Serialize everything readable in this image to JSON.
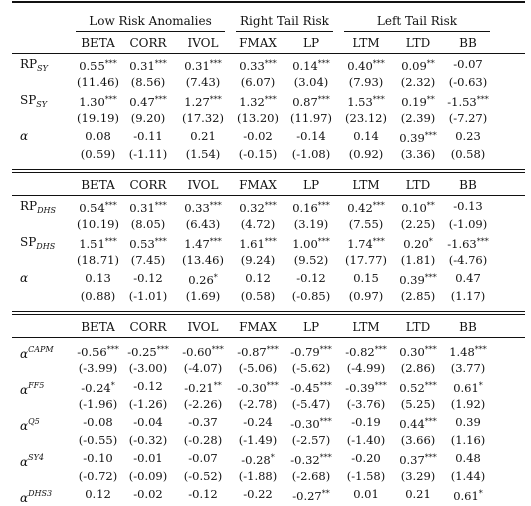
{
  "groups": [
    {
      "title": "Low Risk Anomalies",
      "cols": [
        0,
        1,
        2
      ]
    },
    {
      "title": "Right Tail Risk",
      "cols": [
        3,
        4
      ]
    },
    {
      "title": "Left Tail Risk",
      "cols": [
        5,
        6,
        7
      ]
    }
  ],
  "columns": [
    "BETA",
    "CORR",
    "IVOL",
    "FMAX",
    "LP",
    "LTM",
    "LTD",
    "BB"
  ],
  "panels": [
    {
      "rows": [
        {
          "label_main": "RP",
          "label_sub": "SY",
          "label_sup": "",
          "label_greek": false,
          "values": [
            "0.55***",
            "0.31***",
            "0.31***",
            "0.33***",
            "0.14***",
            "0.40***",
            "0.09**",
            "-0.07"
          ]
        },
        {
          "label_main": "",
          "label_sub": "",
          "label_sup": "",
          "label_greek": false,
          "values": [
            "(11.46)",
            "(8.56)",
            "(7.43)",
            "(6.07)",
            "(3.04)",
            "(7.93)",
            "(2.32)",
            "(-0.63)"
          ]
        },
        {
          "label_main": "SP",
          "label_sub": "SY",
          "label_sup": "",
          "label_greek": false,
          "values": [
            "1.30***",
            "0.47***",
            "1.27***",
            "1.32***",
            "0.87***",
            "1.53***",
            "0.19**",
            "-1.53***"
          ]
        },
        {
          "label_main": "",
          "label_sub": "",
          "label_sup": "",
          "label_greek": false,
          "values": [
            "(19.19)",
            "(9.20)",
            "(17.32)",
            "(13.20)",
            "(11.97)",
            "(23.12)",
            "(2.39)",
            "(-7.27)"
          ]
        },
        {
          "label_main": "α",
          "label_sub": "",
          "label_sup": "",
          "label_greek": true,
          "values": [
            "0.08",
            "-0.11",
            "0.21",
            "-0.02",
            "-0.14",
            "0.14",
            "0.39***",
            "0.23"
          ]
        },
        {
          "label_main": "",
          "label_sub": "",
          "label_sup": "",
          "label_greek": false,
          "values": [
            "(0.59)",
            "(-1.11)",
            "(1.54)",
            "(-0.15)",
            "(-1.08)",
            "(0.92)",
            "(3.36)",
            "(0.58)"
          ]
        }
      ]
    },
    {
      "rows": [
        {
          "label_main": "RP",
          "label_sub": "DHS",
          "label_sup": "",
          "label_greek": false,
          "values": [
            "0.54***",
            "0.31***",
            "0.33***",
            "0.32***",
            "0.16***",
            "0.42***",
            "0.10**",
            "-0.13"
          ]
        },
        {
          "label_main": "",
          "label_sub": "",
          "label_sup": "",
          "label_greek": false,
          "values": [
            "(10.19)",
            "(8.05)",
            "(6.43)",
            "(4.72)",
            "(3.19)",
            "(7.55)",
            "(2.25)",
            "(-1.09)"
          ]
        },
        {
          "label_main": "SP",
          "label_sub": "DHS",
          "label_sup": "",
          "label_greek": false,
          "values": [
            "1.51***",
            "0.53***",
            "1.47***",
            "1.61***",
            "1.00***",
            "1.74***",
            "0.20*",
            "-1.63***"
          ]
        },
        {
          "label_main": "",
          "label_sub": "",
          "label_sup": "",
          "label_greek": false,
          "values": [
            "(18.71)",
            "(7.45)",
            "(13.46)",
            "(9.24)",
            "(9.52)",
            "(17.77)",
            "(1.81)",
            "(-4.76)"
          ]
        },
        {
          "label_main": "α",
          "label_sub": "",
          "label_sup": "",
          "label_greek": true,
          "values": [
            "0.13",
            "-0.12",
            "0.26*",
            "0.12",
            "-0.12",
            "0.15",
            "0.39***",
            "0.47"
          ]
        },
        {
          "label_main": "",
          "label_sub": "",
          "label_sup": "",
          "label_greek": false,
          "values": [
            "(0.88)",
            "(-1.01)",
            "(1.69)",
            "(0.58)",
            "(-0.85)",
            "(0.97)",
            "(2.85)",
            "(1.17)"
          ]
        }
      ]
    },
    {
      "rows": [
        {
          "label_main": "α",
          "label_sub": "",
          "label_sup": "CAPM",
          "label_greek": true,
          "values": [
            "-0.56***",
            "-0.25***",
            "-0.60***",
            "-0.87***",
            "-0.79***",
            "-0.82***",
            "0.30***",
            "1.48***"
          ]
        },
        {
          "label_main": "",
          "label_sub": "",
          "label_sup": "",
          "label_greek": false,
          "values": [
            "(-3.99)",
            "(-3.00)",
            "(-4.07)",
            "(-5.06)",
            "(-5.62)",
            "(-4.99)",
            "(2.86)",
            "(3.77)"
          ]
        },
        {
          "label_main": "α",
          "label_sub": "",
          "label_sup": "FF5",
          "label_greek": true,
          "values": [
            "-0.24*",
            "-0.12",
            "-0.21**",
            "-0.30***",
            "-0.45***",
            "-0.39***",
            "0.52***",
            "0.61*"
          ]
        },
        {
          "label_main": "",
          "label_sub": "",
          "label_sup": "",
          "label_greek": false,
          "values": [
            "(-1.96)",
            "(-1.26)",
            "(-2.26)",
            "(-2.78)",
            "(-5.47)",
            "(-3.76)",
            "(5.25)",
            "(1.92)"
          ]
        },
        {
          "label_main": "α",
          "label_sub": "",
          "label_sup": "Q5",
          "label_greek": true,
          "values": [
            "-0.08",
            "-0.04",
            "-0.37",
            "-0.24",
            "-0.30***",
            "-0.19",
            "0.44***",
            "0.39"
          ]
        },
        {
          "label_main": "",
          "label_sub": "",
          "label_sup": "",
          "label_greek": false,
          "values": [
            "(-0.55)",
            "(-0.32)",
            "(-0.28)",
            "(-1.49)",
            "(-2.57)",
            "(-1.40)",
            "(3.66)",
            "(1.16)"
          ]
        },
        {
          "label_main": "α",
          "label_sub": "",
          "label_sup": "SY4",
          "label_greek": true,
          "values": [
            "-0.10",
            "-0.01",
            "-0.07",
            "-0.28*",
            "-0.32***",
            "-0.20",
            "0.37***",
            "0.48"
          ]
        },
        {
          "label_main": "",
          "label_sub": "",
          "label_sup": "",
          "label_greek": false,
          "values": [
            "(-0.72)",
            "(-0.09)",
            "(-0.52)",
            "(-1.88)",
            "(-2.68)",
            "(-1.58)",
            "(3.29)",
            "(1.44)"
          ]
        },
        {
          "label_main": "α",
          "label_sub": "",
          "label_sup": "DHS3",
          "label_greek": true,
          "values": [
            "0.12",
            "-0.02",
            "-0.12",
            "-0.22",
            "-0.27**",
            "0.01",
            "0.21",
            "0.61*"
          ]
        }
      ]
    }
  ]
}
